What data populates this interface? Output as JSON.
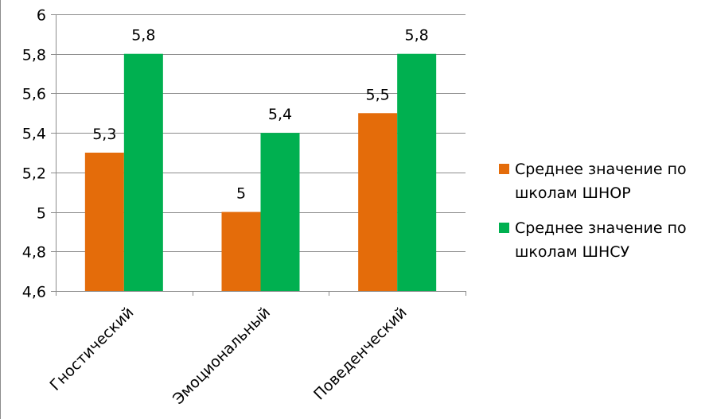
{
  "chart_data": {
    "type": "bar",
    "categories": [
      "Гностический",
      "Эмоциональный",
      "Поведенческий"
    ],
    "series": [
      {
        "name": "Среднее значение по школам ШНОР",
        "color": "#e46c0a",
        "values": [
          5.3,
          5.0,
          5.5
        ],
        "value_labels": [
          "5,3",
          "5",
          "5,5"
        ],
        "legend_lines": [
          "Среднее значение по",
          "школам ШНОР"
        ]
      },
      {
        "name": "Среднее значение по школам ШНСУ",
        "color": "#00b050",
        "values": [
          5.8,
          5.4,
          5.8
        ],
        "value_labels": [
          "5,8",
          "5,4",
          "5,8"
        ],
        "legend_lines": [
          "Среднее значение по",
          "школам ШНСУ"
        ]
      }
    ],
    "ylim": [
      4.6,
      6.0
    ],
    "yticks": [
      4.6,
      4.8,
      5.0,
      5.2,
      5.4,
      5.6,
      5.8,
      6.0
    ],
    "ytick_labels": [
      "4,6",
      "4,8",
      "5",
      "5,2",
      "5,4",
      "5,6",
      "5,8",
      "6"
    ],
    "grid": true,
    "legend_position": "right",
    "title": "",
    "xlabel": "",
    "ylabel": ""
  }
}
